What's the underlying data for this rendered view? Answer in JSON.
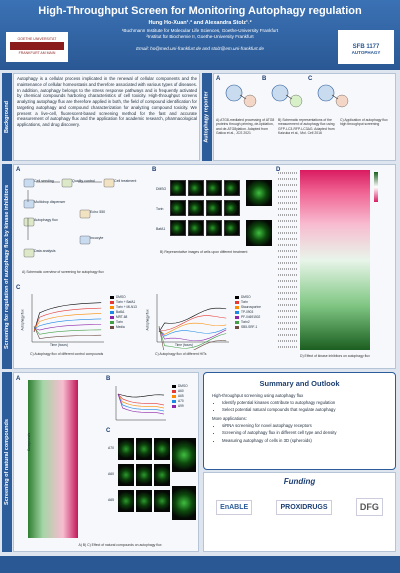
{
  "header": {
    "title": "High-Throughput Screen for Monitoring Autophagy regulation",
    "authors": "Hung Ho-Xuan¹˒² and Alexandra Stolz¹˒²",
    "affiliations": [
      "¹Buchmann Institute for Molecular Life Sciences, Goethe-University Frankfurt",
      "²Institut für Biochemie II, Goethe-University Frankfurt"
    ],
    "email": "Email: ho@med.uni-frankfurt.de and stolz@em.uni-frankfurt.de",
    "logo_left": {
      "top": "GOETHE UNIVERSITÄT",
      "bottom": "FRANKFURT AM MAIN"
    },
    "logo_right": {
      "title": "SFB 1177",
      "subtitle": "AUTOPHAGY"
    }
  },
  "background": {
    "label": "Background",
    "text": "Autophagy is a cellular process implicated in the renewal of cellular components and the maintenance of cellular homeostasis and therefore associated with various types of diseases. In addition, autophagy belongs to the stress response pathways and is frequently activated by chemical compounds harboring characteristics of cell toxicity. High-throughput screens analyzing autophagy flux are therefore applied in both, the field of compound identification for targeting autophagy and compound characterization for analyzing compound toxicity. We present a live-cell, fluorescent-based screening method for the fast and accurate measurement of autophagy flux and the application for academic research, pharmacological applications, and drug discovery.",
    "reporter": {
      "label": "Autophagy reporter",
      "panels": [
        "A",
        "B",
        "C"
      ],
      "captions": [
        "A) ATG8-mediated processing of ATG8 proteins through priming, de-lipidation, and de-ATG8ylation. Adapted from Gatica et al., JCS 2021",
        "B) Schematic representations of the measurement of autophagy flux using GFP-LC3-RFP-LC3ΔG. Adapted from Kaizuka et al., Mol. Cell 2016",
        "C) Application of autophagy flux high throughput screening"
      ]
    }
  },
  "screening": {
    "label": "Screening for regulation of autophagy flux by kinase inhibitors",
    "panels": [
      "A",
      "B",
      "C",
      "D"
    ],
    "workflow": [
      "Cell seeding",
      "Quality control",
      "Cell treatment",
      "Multidrop dispenser",
      "Autophagy flux",
      "Echo 550",
      "Incucyte",
      "Data analysis"
    ],
    "caption_a": "A) Schematic overview of screening for autophagy flux",
    "image_rows": [
      "DMSO",
      "Torin",
      "BafA1"
    ],
    "caption_b": "B) Representative images of cells upon different treatment",
    "axis_x": "Time (hours)",
    "axis_y": "Autophagy flux",
    "legend_c1": [
      "DMSO",
      "Torin + BafA1",
      "Torin + MLN13",
      "BafA1",
      "MRT-68",
      "Torin",
      "Media"
    ],
    "legend_c2": [
      "DMSO",
      "Torin",
      "Staurosporine",
      "TP-0903",
      "PF-04691502",
      "Torin2",
      "SB5-SRF-1"
    ],
    "caption_c1": "C) Autophagy flux of different control compounds",
    "caption_c2": "C) Autophagy flux of different HITs",
    "caption_d": "D) Effect of kinase inhibitors on autophagy flux"
  },
  "natural": {
    "label": "Screening of natural compounds",
    "panels": [
      "A",
      "B",
      "C"
    ],
    "heatmap_label": "Compounds",
    "legend": [
      "DMSO",
      "A60",
      "A65",
      "A70",
      "A99"
    ],
    "image_rows": [
      "A70",
      "A60",
      "A65"
    ],
    "caption": "A) B) C) Effect of natural compounds on autophagy flux"
  },
  "summary": {
    "title": "Summary and Outlook",
    "intro": "High-throughput screening using autophagy flux",
    "points": [
      "Identify potential kinases contribute to autophagy regulation",
      "Select potential natural compounds that regulate autophagy"
    ],
    "more_title": "More applications:",
    "more": [
      "siRNA screening for novel autophagy receptors",
      "Screening of autophagy flux in different cell type and density",
      "Measuring autophagy of cells in 3D (spheroids)"
    ]
  },
  "funding": {
    "title": "Funding",
    "logos": [
      "EnABLE",
      "PROXIDRUGS",
      "DFG"
    ]
  }
}
